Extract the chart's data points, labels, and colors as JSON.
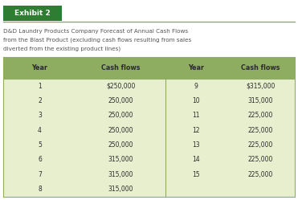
{
  "exhibit_label": "Exhibit 2",
  "exhibit_bg": "#2e7d32",
  "exhibit_text_color": "#ffffff",
  "title_line1": "D&D Laundry Products Company Forecast of Annual Cash Flows",
  "title_line2": "from the Blast Product (excluding cash flows resulting from sales",
  "title_line3": "diverted from the existing product lines)",
  "title_color": "#555555",
  "header_bg": "#8fad60",
  "header_text_color": "#2b2b2b",
  "row_bg": "#e8efcf",
  "row_text_color": "#2b2b2b",
  "border_color": "#8fad60",
  "col_headers": [
    "Year",
    "Cash flows",
    "Year",
    "Cash flows"
  ],
  "left_years": [
    "1",
    "2",
    "3",
    "4",
    "5",
    "6",
    "7",
    "8"
  ],
  "left_cashflows": [
    "$250,000",
    "250,000",
    "250,000",
    "250,000",
    "250,000",
    "315,000",
    "315,000",
    "315,000"
  ],
  "right_years": [
    "9",
    "10",
    "11",
    "12",
    "13",
    "14",
    "15"
  ],
  "right_cashflows": [
    "$315,000",
    "315,000",
    "225,000",
    "225,000",
    "225,000",
    "225,000",
    "225,000"
  ],
  "fig_bg": "#ffffff"
}
